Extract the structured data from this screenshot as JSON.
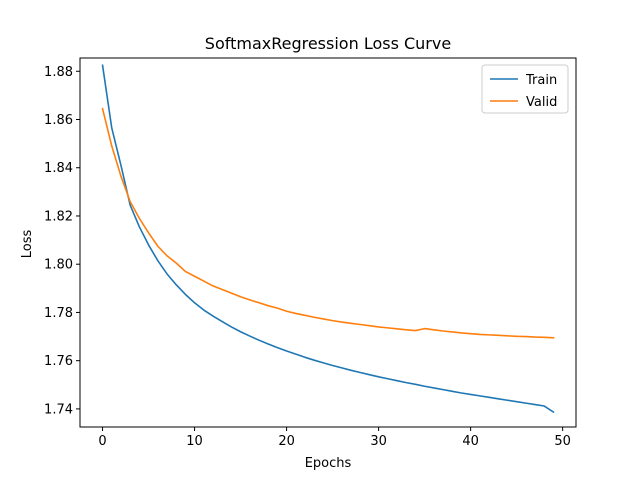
{
  "chart_data": {
    "type": "line",
    "title": "SoftmaxRegression Loss Curve",
    "xlabel": "Epochs",
    "ylabel": "Loss",
    "xlim": [
      -2.45,
      51.45
    ],
    "ylim": [
      1.7325,
      1.8855
    ],
    "xticks": [
      0,
      10,
      20,
      30,
      40,
      50
    ],
    "yticks": [
      1.74,
      1.76,
      1.78,
      1.8,
      1.82,
      1.84,
      1.86,
      1.88
    ],
    "ytick_labels": [
      "1.74",
      "1.76",
      "1.78",
      "1.80",
      "1.82",
      "1.84",
      "1.86",
      "1.88"
    ],
    "grid": false,
    "legend_position": "top-right",
    "x": [
      0,
      1,
      2,
      3,
      4,
      5,
      6,
      7,
      8,
      9,
      10,
      11,
      12,
      13,
      14,
      15,
      16,
      17,
      18,
      19,
      20,
      21,
      22,
      23,
      24,
      25,
      26,
      27,
      28,
      29,
      30,
      31,
      32,
      33,
      34,
      35,
      36,
      37,
      38,
      39,
      40,
      41,
      42,
      43,
      44,
      45,
      46,
      47,
      48,
      49
    ],
    "series": [
      {
        "name": "Train",
        "color": "#1f77b4",
        "values": [
          1.8825,
          1.8565,
          1.841,
          1.8245,
          1.8155,
          1.808,
          1.8015,
          1.796,
          1.7915,
          1.7875,
          1.784,
          1.781,
          1.7785,
          1.7762,
          1.774,
          1.772,
          1.7702,
          1.7685,
          1.7669,
          1.7654,
          1.764,
          1.7627,
          1.7614,
          1.7602,
          1.7591,
          1.758,
          1.757,
          1.756,
          1.7551,
          1.7542,
          1.7533,
          1.7525,
          1.7517,
          1.7509,
          1.7502,
          1.7494,
          1.7487,
          1.748,
          1.7473,
          1.7466,
          1.746,
          1.7454,
          1.7448,
          1.7442,
          1.7436,
          1.743,
          1.7424,
          1.7418,
          1.7412,
          1.7387
        ]
      },
      {
        "name": "Valid",
        "color": "#ff7f0e",
        "values": [
          1.8645,
          1.849,
          1.8365,
          1.826,
          1.819,
          1.813,
          1.8075,
          1.8035,
          1.8005,
          1.797,
          1.795,
          1.793,
          1.791,
          1.7895,
          1.788,
          1.7865,
          1.7852,
          1.784,
          1.7828,
          1.7818,
          1.7805,
          1.7796,
          1.7788,
          1.778,
          1.7773,
          1.7766,
          1.776,
          1.7755,
          1.775,
          1.7745,
          1.774,
          1.7736,
          1.7732,
          1.7728,
          1.7725,
          1.7733,
          1.7728,
          1.7723,
          1.7719,
          1.7715,
          1.7712,
          1.7709,
          1.7707,
          1.7705,
          1.7703,
          1.7701,
          1.77,
          1.7698,
          1.7697,
          1.7695
        ]
      }
    ]
  }
}
